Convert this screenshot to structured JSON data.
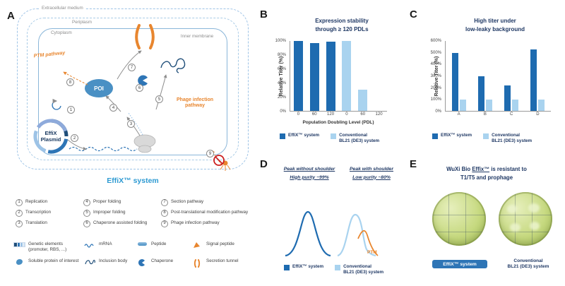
{
  "colors": {
    "dark_blue": "#1E6BB0",
    "light_blue": "#A9D3EF",
    "orange": "#E8862F",
    "navy": "#1F3864",
    "accent_blue": "#2E9AD2"
  },
  "legend": {
    "effix": "EffiX™ system",
    "conventional_line1": "Conventional",
    "conventional_line2": "BL21 (DE3) system"
  },
  "panelA": {
    "label": "A",
    "regions": {
      "extracellular": "Extracellular medium",
      "periplasm": "Periplasm",
      "cytoplasm": "Cytoplasm",
      "inner_membrane": "Inner membrane"
    },
    "plasmid_line1": "EffiX",
    "plasmid_line2": "Plasmid",
    "poi": "POI",
    "ptm_pathway": "PTM pathway",
    "phage_pathway": "Phage infection pathway",
    "system_label": "EffiX™ system",
    "steps": [
      {
        "num": "1",
        "label": "Replication"
      },
      {
        "num": "2",
        "label": "Transcription"
      },
      {
        "num": "3",
        "label": "Translation"
      },
      {
        "num": "4",
        "label": "Proper folding"
      },
      {
        "num": "5",
        "label": "Improper folding"
      },
      {
        "num": "6",
        "label": "Chaperone assisted folding"
      },
      {
        "num": "7",
        "label": "Section pathway"
      },
      {
        "num": "8",
        "label": "Post-translational modification pathway"
      },
      {
        "num": "9",
        "label": "Phage infection pathway"
      }
    ],
    "icons": [
      {
        "name": "genetic-elements",
        "label": "Genetic elements (promoter, RBS, ...)"
      },
      {
        "name": "mrna",
        "label": "mRNA"
      },
      {
        "name": "peptide",
        "label": "Peptide"
      },
      {
        "name": "signal-peptide",
        "label": "Signal peptide"
      },
      {
        "name": "soluble-poi",
        "label": "Soluble protein of interest"
      },
      {
        "name": "inclusion-body",
        "label": "Inclusion body"
      },
      {
        "name": "chaperone",
        "label": "Chaperone"
      },
      {
        "name": "secretion-tunnel",
        "label": "Secretion tunnel"
      }
    ]
  },
  "panelB": {
    "label": "B",
    "title_line1": "Expression stability",
    "title_line2": "through ≥ 120 PDLs"
  },
  "panelC": {
    "label": "C",
    "title_line1": "High titer under",
    "title_line2": "low-leaky background"
  },
  "panelD": {
    "label": "D",
    "left_title": "Peak without shoulder",
    "left_sub": "High purity ~99%",
    "right_title": "Peak with shoulder",
    "right_sub": "Low purity ~80%",
    "ptm_annotation": "PTM"
  },
  "panelE": {
    "label": "E",
    "title_pre": "WuXi Bio ",
    "title_em": "Effix™",
    "title_post": " is resistant to",
    "title_line2": "T1/T5 and prophage",
    "dish1_label": "EffiX™ system",
    "dish2_line1": "Conventional",
    "dish2_line2": "BL21 (DE3) system"
  },
  "chart_data": [
    {
      "id": "B",
      "type": "bar",
      "title": "Expression stability through ≥ 120 PDLs",
      "xlabel": "Population Doubling Level (PDL)",
      "ylabel": "Relative Titer (%)",
      "ylim": [
        0,
        100
      ],
      "ytick_labels": [
        "100%",
        "80%",
        "60%",
        "40%",
        "20%",
        "0%"
      ],
      "categories": [
        "0",
        "60",
        "120",
        "0",
        "60",
        "120"
      ],
      "series": [
        {
          "name": "EffiX™ system",
          "color_key": "dark_blue",
          "values": [
            100,
            97,
            99,
            null,
            null,
            null
          ]
        },
        {
          "name": "Conventional BL21 (DE3) system",
          "color_key": "light_blue",
          "values": [
            null,
            null,
            null,
            100,
            30,
            0
          ]
        }
      ],
      "grid": false,
      "legend_position": "bottom"
    },
    {
      "id": "C",
      "type": "bar",
      "title": "High titer under low-leaky background",
      "xlabel": "",
      "ylabel": "Relative Titer (%)",
      "ylim": [
        0,
        600
      ],
      "ytick_labels": [
        "600%",
        "500%",
        "400%",
        "300%",
        "200%",
        "100%",
        "0%"
      ],
      "categories": [
        "A",
        "B",
        "C",
        "D"
      ],
      "series": [
        {
          "name": "EffiX™ system",
          "color_key": "dark_blue",
          "values": [
            500,
            300,
            220,
            530
          ]
        },
        {
          "name": "Conventional BL21 (DE3) system",
          "color_key": "light_blue",
          "values": [
            100,
            100,
            100,
            100
          ]
        }
      ],
      "grid": false,
      "legend_position": "bottom"
    }
  ]
}
